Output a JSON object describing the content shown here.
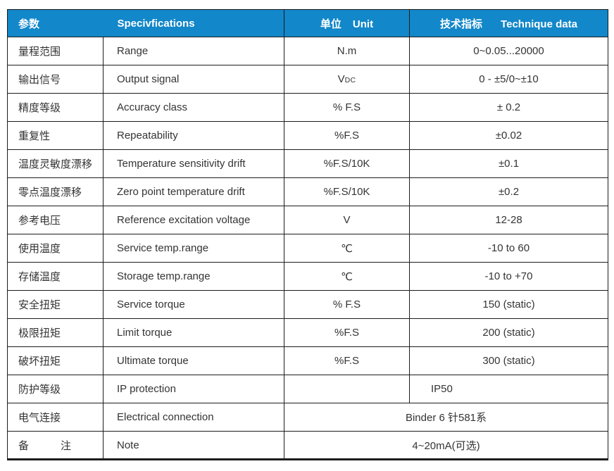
{
  "table": {
    "accent_color": "#1287c9",
    "border_color": "#1c1c1c",
    "header": {
      "param_cn": "参数",
      "spec_en": "Specivfications",
      "unit_cn": "单位",
      "unit_en": "Unit",
      "tech_cn": "技术指标",
      "tech_en": "Technique data"
    },
    "rows": [
      {
        "cn": "量程范围",
        "en": "Range",
        "unit": "N.m",
        "value": "0~0.05...20000"
      },
      {
        "cn": "输出信号",
        "en": "Output signal",
        "unit_main": "V",
        "unit_sub": "DC",
        "value": "0 - ±5/0~±10"
      },
      {
        "cn": "精度等级",
        "en": "Accuracy class",
        "unit": "% F.S",
        "value": "± 0.2"
      },
      {
        "cn": "重复性",
        "en": "Repeatability",
        "unit": "%F.S",
        "value": "±0.02"
      },
      {
        "cn": "温度灵敏度漂移",
        "en": "Temperature sensitivity drift",
        "unit": "%F.S/10K",
        "value": "±0.1"
      },
      {
        "cn": "零点温度漂移",
        "en": "Zero point temperature drift",
        "unit": "%F.S/10K",
        "value": "±0.2"
      },
      {
        "cn": "参考电压",
        "en": "Reference excitation voltage",
        "unit": "V",
        "value": "12-28"
      },
      {
        "cn": "使用温度",
        "en": "Service temp.range",
        "unit": "℃",
        "value": "-10 to 60"
      },
      {
        "cn": "存储温度",
        "en": "Storage temp.range",
        "unit": "℃",
        "value": "-10 to +70"
      },
      {
        "cn": "安全扭矩",
        "en": "Service torque",
        "unit": "% F.S",
        "value": "150 (static)"
      },
      {
        "cn": "极限扭矩",
        "en": "Limit torque",
        "unit": "%F.S",
        "value": "200 (static)"
      },
      {
        "cn": "破坏扭矩",
        "en": "Ultimate torque",
        "unit": "%F.S",
        "value": "300 (static)"
      },
      {
        "cn": "防护等级",
        "en": "IP protection",
        "unit": "",
        "value": "IP50"
      },
      {
        "cn": "电气连接",
        "en": "Electrical connection",
        "merged_value": "Binder 6 针581系"
      },
      {
        "cn": "备　　　注",
        "en": "Note",
        "merged_value": "4~20mA(可选)"
      }
    ]
  }
}
